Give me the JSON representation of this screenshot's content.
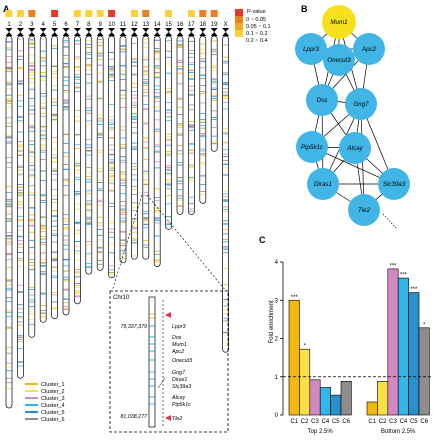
{
  "panels": {
    "a": "A",
    "b": "B",
    "c": "C"
  },
  "chromosomes": {
    "names": [
      "1",
      "2",
      "3",
      "4",
      "5",
      "6",
      "7",
      "8",
      "9",
      "10",
      "11",
      "12",
      "13",
      "14",
      "15",
      "16",
      "17",
      "18",
      "19",
      "X"
    ],
    "lengths": [
      1.0,
      0.92,
      0.81,
      0.77,
      0.76,
      0.75,
      0.72,
      0.64,
      0.63,
      0.65,
      0.61,
      0.6,
      0.6,
      0.62,
      0.52,
      0.48,
      0.48,
      0.45,
      0.31,
      0.85
    ],
    "pvalue_bins": [
      "0.2-0.4",
      "0.2-0.4",
      "0.05-0.1",
      "none",
      "0-0.05",
      "none",
      "0.2-0.4",
      "0.2-0.4",
      "0.2-0.4",
      "0-0.05",
      "none",
      "0.2-0.4",
      "0.05-0.1",
      "none",
      "0.2-0.4",
      "none",
      "0.2-0.4",
      "0.05-0.1",
      "0.05-0.1",
      "none"
    ]
  },
  "pvalue_legend": {
    "title": "P-value",
    "items": [
      {
        "label": "0 ~ 0.05",
        "color": "#e8382b"
      },
      {
        "label": "0.05 ~ 0.1",
        "color": "#ef7d22"
      },
      {
        "label": "0.1 ~ 0.2",
        "color": "#f5a81d"
      },
      {
        "label": "0.2 ~ 0.4",
        "color": "#fbd23a"
      }
    ]
  },
  "cluster_legend": [
    {
      "label": "Cluster_1",
      "color": "#f2b90c"
    },
    {
      "label": "Cluster_2",
      "color": "#f9e04b"
    },
    {
      "label": "Cluster_3",
      "color": "#d389c0"
    },
    {
      "label": "Cluster_4",
      "color": "#35b6e8"
    },
    {
      "label": "Cluster_5",
      "color": "#2a8fcd"
    },
    {
      "label": "Cluster_6",
      "color": "#8d8d8d"
    }
  ],
  "zoom": {
    "chr": "Chr10",
    "start": "79,337,379",
    "end": "81,038,277",
    "genes": [
      "Lppr3",
      "Dos",
      "Mum1",
      "Apc2",
      "Onecut3",
      "Gng7",
      "Diras1",
      "Slc39a3",
      "Atcay",
      "Pip5k1c",
      "Tle2"
    ]
  },
  "network": {
    "nodes": [
      "Mum1",
      "Lppr3",
      "Apc2",
      "Onecut3",
      "Dos",
      "Gng7",
      "Pip5k1c",
      "Atcay",
      "Diras1",
      "Slc39a3",
      "Tle2"
    ],
    "highlight": "Mum1",
    "node_color": "#41b6e6",
    "highlight_color": "#f7e01d",
    "edges": [
      [
        "Mum1",
        "Lppr3"
      ],
      [
        "Mum1",
        "Apc2"
      ],
      [
        "Mum1",
        "Onecut3"
      ],
      [
        "Mum1",
        "Dos"
      ],
      [
        "Mum1",
        "Gng7"
      ],
      [
        "Lppr3",
        "Onecut3"
      ],
      [
        "Lppr3",
        "Dos"
      ],
      [
        "Lppr3",
        "Apc2"
      ],
      [
        "Apc2",
        "Onecut3"
      ],
      [
        "Apc2",
        "Gng7"
      ],
      [
        "Apc2",
        "Dos"
      ],
      [
        "Onecut3",
        "Dos"
      ],
      [
        "Onecut3",
        "Gng7"
      ],
      [
        "Dos",
        "Gng7"
      ],
      [
        "Dos",
        "Pip5k1c"
      ],
      [
        "Dos",
        "Atcay"
      ],
      [
        "Dos",
        "Diras1"
      ],
      [
        "Gng7",
        "Pip5k1c"
      ],
      [
        "Gng7",
        "Atcay"
      ],
      [
        "Gng7",
        "Slc39a3"
      ],
      [
        "Gng7",
        "Diras1"
      ],
      [
        "Gng7",
        "Tle2"
      ],
      [
        "Pip5k1c",
        "Atcay"
      ],
      [
        "Pip5k1c",
        "Diras1"
      ],
      [
        "Pip5k1c",
        "Slc39a3"
      ],
      [
        "Atcay",
        "Diras1"
      ],
      [
        "Atcay",
        "Slc39a3"
      ],
      [
        "Atcay",
        "Tle2"
      ],
      [
        "Diras1",
        "Slc39a3"
      ],
      [
        "Diras1",
        "Tle2"
      ],
      [
        "Slc39a3",
        "Tle2"
      ]
    ]
  },
  "chart_data": {
    "type": "bar",
    "ylabel": "Fold enrichment",
    "ylim": [
      0,
      4
    ],
    "yticks": [
      0,
      1,
      2,
      3,
      4
    ],
    "reference_line": 1,
    "categories": [
      "C1",
      "C2",
      "C3",
      "C4",
      "C5",
      "C6"
    ],
    "groups": [
      {
        "name": "Top 2.5%",
        "values": [
          3.0,
          1.72,
          0.92,
          0.72,
          0.52,
          0.88
        ],
        "stars": [
          "***",
          "*",
          "",
          "",
          "",
          ""
        ]
      },
      {
        "name": "Bottom 2.5%",
        "values": [
          0.34,
          0.88,
          3.82,
          3.58,
          3.2,
          2.28
        ],
        "stars": [
          "",
          "",
          "***",
          "***",
          "***",
          "*"
        ]
      }
    ],
    "colors": [
      "#f2b90c",
      "#f9e04b",
      "#d389c0",
      "#35b6e8",
      "#2a8fcd",
      "#8d8d8d"
    ]
  }
}
